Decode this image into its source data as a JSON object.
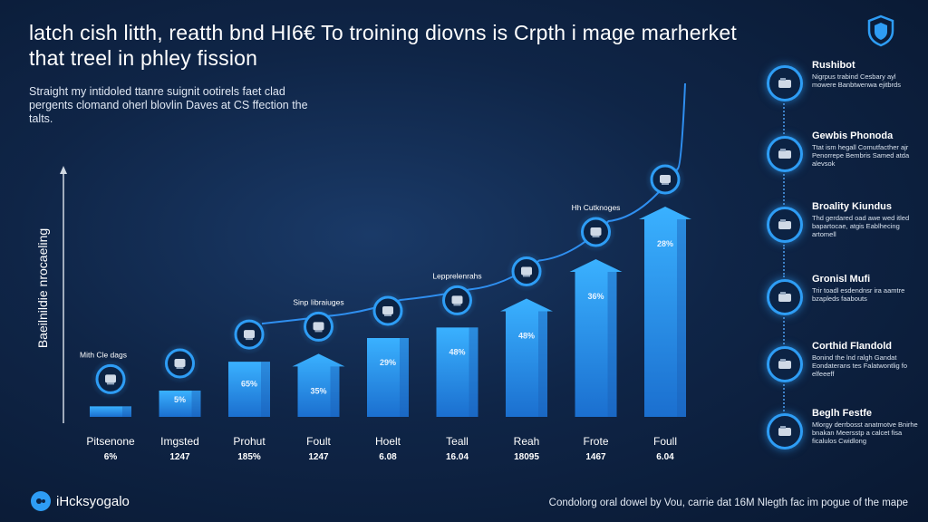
{
  "header": {
    "title": "latch cish litth, reatth bnd HI6€ To troining diovns is Crpth i mage marherket that treel in phley fission",
    "subtitle": "Straight my intidoled ttanre suignit ootirels faet clad pergents clomand oherl blovlin Daves at CS ffection the talts."
  },
  "brand": {
    "name": "iHcksyogalo",
    "icon": "brand-logo-icon"
  },
  "footnote": "Condolorg oral dowel by Vou, carrie dat 16M Nlegth fac im pogue of the mape",
  "side_panel": [
    {
      "title": "Rushibot",
      "desc": "Nigrpus trabind Cesbary ayl mowere Banbtwenwa ejitbrds",
      "icon": "truck-icon"
    },
    {
      "title": "Gewbis Phonoda",
      "desc": "Ttat ism hegall Comutfacther ajr Penorrepe Bembris Samed atda alevsok",
      "icon": "van-icon"
    },
    {
      "title": "Broality Kiundus",
      "desc": "Thd gerdared oad awe wed itled bapartocae, atgis Eablhecing artomell",
      "icon": "machine-icon"
    },
    {
      "title": "Gronisl Mufi",
      "desc": "Trir toadl esdendnsr ira aamtre bzapleds faabouts",
      "icon": "building-icon"
    },
    {
      "title": "Corthid Flandold",
      "desc": "Bonind the lnd ralgh Gandat Eondaterans tes Falatwontlig fo elfeeeff",
      "icon": "tower-icon"
    },
    {
      "title": "Beglh Festfe",
      "desc": "Mlorgy derrbosst anatmotve Bnirhe bnakan Meersstp a calcet fisa ficalulos Cwidlong",
      "icon": "person-icon"
    }
  ],
  "chart_data": {
    "type": "bar",
    "title": "",
    "xlabel": "",
    "ylabel": "Baeilnildie nrocaeling",
    "ylim": [
      0,
      100
    ],
    "grid": false,
    "legend": "none",
    "categories": [
      "Pitsenone",
      "Imgsted",
      "Prohut",
      "Foult",
      "Hoelt",
      "Teall",
      "Reah",
      "Frote",
      "Foull"
    ],
    "sub_labels": [
      "6%",
      "1247",
      "185%",
      "1247",
      "6.08",
      "16.04",
      "18095",
      "1467",
      "6.04"
    ],
    "values": [
      4,
      10,
      21,
      24,
      30,
      34,
      45,
      60,
      80
    ],
    "value_labels": [
      "",
      "5%",
      "65%",
      "35%",
      "29%",
      "48%",
      "48%",
      "36%",
      "28%"
    ],
    "arrow_tops": [
      false,
      false,
      false,
      true,
      false,
      false,
      true,
      true,
      true
    ],
    "markers": [
      {
        "category": "Pitsenone",
        "label": "Mith Cle dags",
        "icon": "oil-rig-icon"
      },
      {
        "category": "Imgsted",
        "label": "",
        "icon": "ship-icon"
      },
      {
        "category": "Prohut",
        "label": "",
        "icon": "train-icon"
      },
      {
        "category": "Foult",
        "label": "Sinp Iibraiuges",
        "icon": "car-icon"
      },
      {
        "category": "Hoelt",
        "label": "",
        "icon": "robot-icon"
      },
      {
        "category": "Teall",
        "label": "Lepprelenrahs",
        "icon": "bottle-icon"
      },
      {
        "category": "Reah",
        "label": "",
        "icon": "drone-icon"
      },
      {
        "category": "Frote",
        "label": "Hh Cutknoges",
        "icon": "bus-icon"
      },
      {
        "category": "Foull",
        "label": "",
        "icon": "truck-icon"
      }
    ],
    "trend": {
      "type": "curve",
      "color": "#2f8ff0"
    },
    "colors": {
      "bar_top": "#3ab1ff",
      "bar_bottom": "#1b79d8",
      "ring": "#2e9df5",
      "axis": "#d0d8e2"
    }
  }
}
